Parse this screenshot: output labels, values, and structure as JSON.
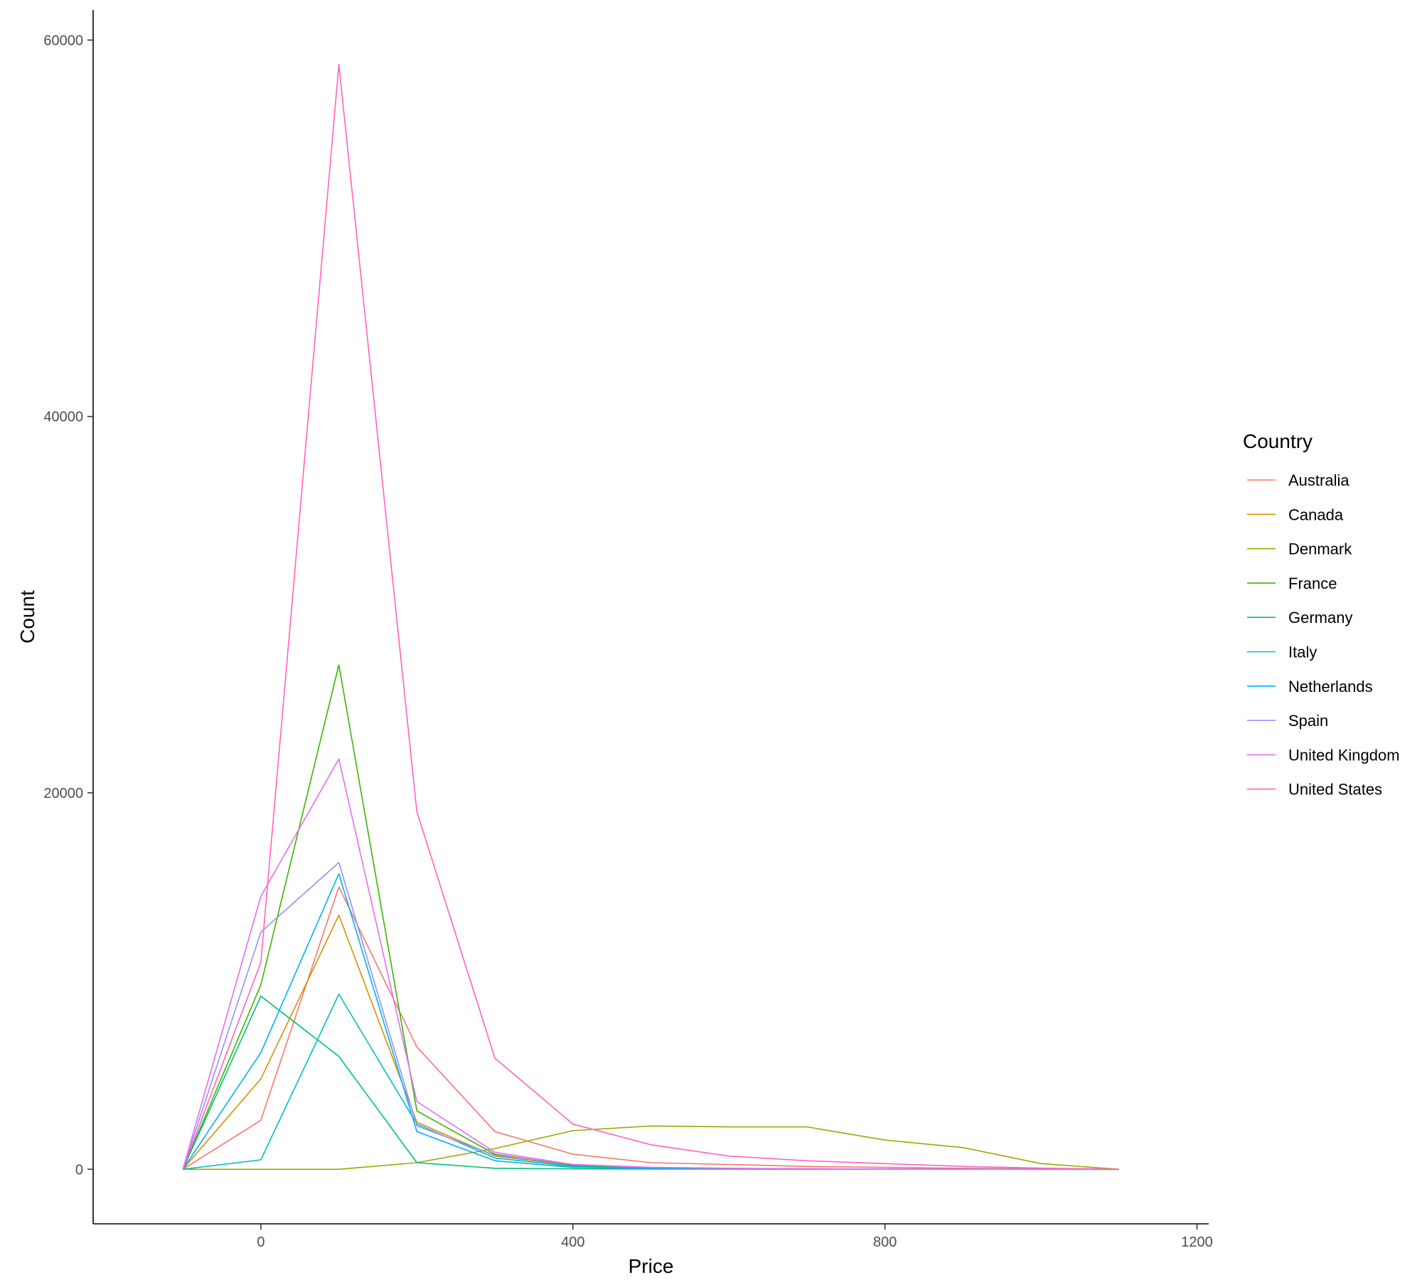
{
  "chart_data": {
    "type": "line",
    "xlabel": "Price",
    "ylabel": "Count",
    "xlim": [
      -215,
      1215
    ],
    "ylim": [
      -2900,
      61600
    ],
    "x_ticks": [
      "0",
      "400",
      "800",
      "1200"
    ],
    "x_tick_values": [
      0,
      400,
      800,
      1200
    ],
    "y_ticks": [
      "0",
      "20000",
      "40000",
      "60000"
    ],
    "y_tick_values": [
      0,
      20000,
      40000,
      60000
    ],
    "grid": false,
    "legend": {
      "title": "Country",
      "placement": "right"
    },
    "x": [
      -100,
      0,
      100,
      200,
      300,
      400,
      500,
      600,
      700,
      800,
      900,
      1000,
      1100
    ],
    "series": [
      {
        "name": "Australia",
        "color": "#F8766D",
        "values": [
          0,
          2600,
          15000,
          6500,
          2000,
          800,
          350,
          250,
          150,
          100,
          50,
          20,
          0
        ]
      },
      {
        "name": "Canada",
        "color": "#D89000",
        "values": [
          0,
          4800,
          13500,
          2500,
          700,
          200,
          80,
          40,
          20,
          10,
          5,
          2,
          0
        ]
      },
      {
        "name": "Denmark",
        "color": "#A3A500",
        "values": [
          0,
          0,
          0,
          350,
          1100,
          2050,
          2300,
          2250,
          2250,
          1550,
          1150,
          300,
          0
        ]
      },
      {
        "name": "France",
        "color": "#39B600",
        "values": [
          0,
          9800,
          26800,
          3100,
          800,
          200,
          80,
          40,
          20,
          10,
          5,
          2,
          0
        ]
      },
      {
        "name": "Germany",
        "color": "#00BF7D",
        "values": [
          0,
          9200,
          6000,
          350,
          50,
          20,
          10,
          5,
          2,
          1,
          0,
          0,
          0
        ]
      },
      {
        "name": "Italy",
        "color": "#00BFC4",
        "values": [
          0,
          500,
          9300,
          2400,
          600,
          150,
          50,
          20,
          10,
          5,
          2,
          0,
          0
        ]
      },
      {
        "name": "Netherlands",
        "color": "#00B0F6",
        "values": [
          0,
          6200,
          15700,
          2000,
          450,
          100,
          40,
          20,
          10,
          5,
          2,
          0,
          0
        ]
      },
      {
        "name": "Spain",
        "color": "#9590FF",
        "values": [
          0,
          12600,
          16300,
          2300,
          750,
          250,
          100,
          50,
          20,
          10,
          5,
          2,
          0
        ]
      },
      {
        "name": "United Kingdom",
        "color": "#E76BF3",
        "values": [
          0,
          14500,
          21800,
          3600,
          900,
          250,
          100,
          50,
          20,
          10,
          5,
          2,
          0
        ]
      },
      {
        "name": "United States",
        "color": "#FF62BC",
        "values": [
          0,
          11000,
          58700,
          19000,
          5900,
          2400,
          1300,
          700,
          450,
          300,
          150,
          60,
          0
        ]
      }
    ]
  }
}
